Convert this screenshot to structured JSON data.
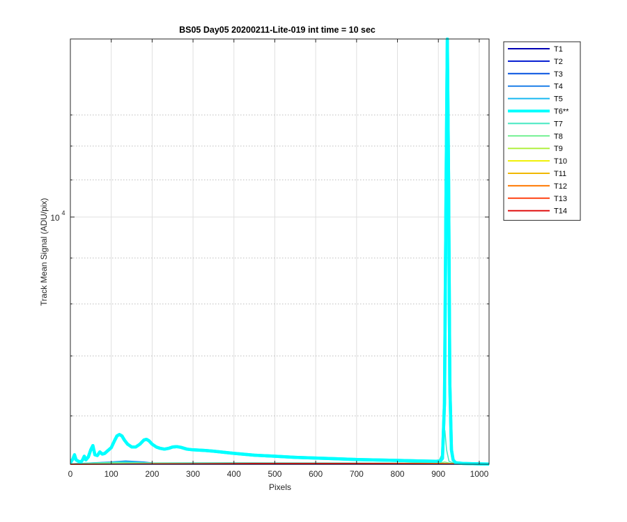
{
  "chart_data": {
    "type": "line",
    "title": "BS05 Day05 20200211-Lite-019 int time = 10 sec",
    "xlabel": "Pixels",
    "ylabel": "Track Mean Signal (ADU/pix)",
    "y_scale": "log",
    "xlim": [
      0,
      1024
    ],
    "ylim": [
      5300,
      15800
    ],
    "x_ticks": [
      0,
      100,
      200,
      300,
      400,
      500,
      600,
      700,
      800,
      900,
      1000
    ],
    "y_tick_label": {
      "base": "10",
      "exponent": "4",
      "value": 10000
    },
    "y_minor_gridlines": [
      6000,
      7000,
      8000,
      9000,
      11000,
      12000,
      13000
    ],
    "grid": true,
    "legend_position": "outside-right",
    "series": [
      {
        "name": "T1",
        "color": "#0000b3",
        "width": 1.5,
        "points": [
          [
            0,
            5300
          ],
          [
            1024,
            5300
          ]
        ]
      },
      {
        "name": "T2",
        "color": "#0018d0",
        "width": 1.5,
        "points": [
          [
            0,
            5302
          ],
          [
            1024,
            5302
          ]
        ]
      },
      {
        "name": "T3",
        "color": "#0050e0",
        "width": 1.5,
        "points": [
          [
            0,
            5303
          ],
          [
            90,
            5318
          ],
          [
            140,
            5330
          ],
          [
            200,
            5305
          ],
          [
            1024,
            5303
          ]
        ]
      },
      {
        "name": "T4",
        "color": "#1a7ee8",
        "width": 1.5,
        "points": [
          [
            0,
            5305
          ],
          [
            100,
            5330
          ],
          [
            135,
            5345
          ],
          [
            180,
            5330
          ],
          [
            210,
            5312
          ],
          [
            1024,
            5306
          ]
        ]
      },
      {
        "name": "T5",
        "color": "#18b8f0",
        "width": 1.5,
        "points": [
          [
            0,
            5306
          ],
          [
            100,
            5328
          ],
          [
            135,
            5340
          ],
          [
            180,
            5325
          ],
          [
            215,
            5310
          ],
          [
            1024,
            5306
          ]
        ]
      },
      {
        "name": "T6**",
        "color": "#00ffff",
        "width": 4.5,
        "points": [
          [
            1,
            5330
          ],
          [
            6,
            5370
          ],
          [
            10,
            5430
          ],
          [
            14,
            5360
          ],
          [
            20,
            5340
          ],
          [
            26,
            5330
          ],
          [
            30,
            5360
          ],
          [
            34,
            5410
          ],
          [
            38,
            5360
          ],
          [
            44,
            5400
          ],
          [
            50,
            5500
          ],
          [
            55,
            5560
          ],
          [
            60,
            5430
          ],
          [
            66,
            5420
          ],
          [
            72,
            5470
          ],
          [
            78,
            5440
          ],
          [
            84,
            5450
          ],
          [
            90,
            5480
          ],
          [
            100,
            5530
          ],
          [
            108,
            5630
          ],
          [
            114,
            5700
          ],
          [
            120,
            5720
          ],
          [
            126,
            5700
          ],
          [
            132,
            5640
          ],
          [
            140,
            5580
          ],
          [
            150,
            5540
          ],
          [
            160,
            5540
          ],
          [
            170,
            5580
          ],
          [
            180,
            5640
          ],
          [
            186,
            5650
          ],
          [
            192,
            5630
          ],
          [
            200,
            5580
          ],
          [
            210,
            5540
          ],
          [
            220,
            5520
          ],
          [
            230,
            5510
          ],
          [
            240,
            5520
          ],
          [
            250,
            5540
          ],
          [
            260,
            5545
          ],
          [
            270,
            5535
          ],
          [
            285,
            5510
          ],
          [
            300,
            5500
          ],
          [
            330,
            5490
          ],
          [
            350,
            5480
          ],
          [
            400,
            5450
          ],
          [
            450,
            5425
          ],
          [
            500,
            5410
          ],
          [
            550,
            5395
          ],
          [
            600,
            5385
          ],
          [
            650,
            5375
          ],
          [
            700,
            5365
          ],
          [
            750,
            5358
          ],
          [
            800,
            5352
          ],
          [
            850,
            5345
          ],
          [
            880,
            5342
          ],
          [
            895,
            5340
          ],
          [
            905,
            5346
          ],
          [
            910,
            5380
          ],
          [
            915,
            6200
          ],
          [
            919,
            11000
          ],
          [
            922,
            15800
          ],
          [
            925,
            11000
          ],
          [
            928,
            6500
          ],
          [
            932,
            5500
          ],
          [
            936,
            5360
          ],
          [
            942,
            5320
          ],
          [
            960,
            5310
          ],
          [
            1000,
            5305
          ],
          [
            1024,
            5303
          ]
        ]
      },
      {
        "name": "T7",
        "color": "#40e8c0",
        "width": 1.5,
        "points": [
          [
            0,
            5305
          ],
          [
            60,
            5318
          ],
          [
            120,
            5326
          ],
          [
            200,
            5318
          ],
          [
            400,
            5320
          ],
          [
            600,
            5318
          ],
          [
            800,
            5315
          ],
          [
            880,
            5318
          ],
          [
            900,
            5330
          ],
          [
            910,
            5450
          ],
          [
            916,
            5780
          ],
          [
            920,
            5500
          ],
          [
            926,
            5340
          ],
          [
            940,
            5310
          ],
          [
            1024,
            5305
          ]
        ]
      },
      {
        "name": "T8",
        "color": "#70f090",
        "width": 1.5,
        "points": [
          [
            0,
            5303
          ],
          [
            100,
            5315
          ],
          [
            300,
            5310
          ],
          [
            700,
            5312
          ],
          [
            900,
            5315
          ],
          [
            916,
            5330
          ],
          [
            930,
            5312
          ],
          [
            1024,
            5304
          ]
        ]
      },
      {
        "name": "T9",
        "color": "#b0f040",
        "width": 1.5,
        "points": [
          [
            0,
            5302
          ],
          [
            300,
            5306
          ],
          [
            700,
            5310
          ],
          [
            900,
            5312
          ],
          [
            1024,
            5303
          ]
        ]
      },
      {
        "name": "T10",
        "color": "#f0f000",
        "width": 1.5,
        "points": [
          [
            0,
            5302
          ],
          [
            300,
            5305
          ],
          [
            700,
            5309
          ],
          [
            900,
            5310
          ],
          [
            1024,
            5303
          ]
        ]
      },
      {
        "name": "T11",
        "color": "#f0b800",
        "width": 1.5,
        "points": [
          [
            0,
            5301
          ],
          [
            300,
            5304
          ],
          [
            700,
            5312
          ],
          [
            850,
            5312
          ],
          [
            1024,
            5302
          ]
        ]
      },
      {
        "name": "T12",
        "color": "#ff7800",
        "width": 1.5,
        "points": [
          [
            0,
            5301
          ],
          [
            300,
            5305
          ],
          [
            600,
            5310
          ],
          [
            800,
            5312
          ],
          [
            1024,
            5302
          ]
        ]
      },
      {
        "name": "T13",
        "color": "#ff4010",
        "width": 1.5,
        "points": [
          [
            0,
            5300
          ],
          [
            200,
            5304
          ],
          [
            500,
            5309
          ],
          [
            750,
            5310
          ],
          [
            1024,
            5301
          ]
        ]
      },
      {
        "name": "T14",
        "color": "#e01010",
        "width": 1.5,
        "points": [
          [
            0,
            5300
          ],
          [
            200,
            5305
          ],
          [
            450,
            5311
          ],
          [
            700,
            5310
          ],
          [
            900,
            5305
          ],
          [
            1024,
            5301
          ]
        ]
      }
    ]
  }
}
